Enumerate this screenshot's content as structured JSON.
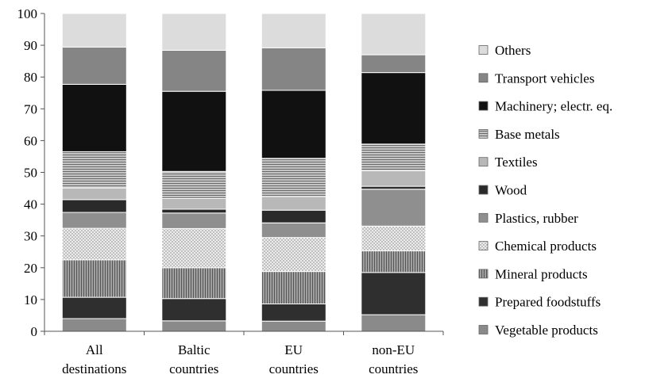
{
  "chart_data": {
    "type": "bar",
    "stacked": true,
    "ylim": [
      0,
      100
    ],
    "yticks": [
      "0",
      "10",
      "20",
      "30",
      "40",
      "50",
      "60",
      "70",
      "80",
      "90",
      "100"
    ],
    "grid": false,
    "legend_position": "right",
    "categories": [
      [
        "All",
        "destinations"
      ],
      [
        "Baltic",
        "countries"
      ],
      [
        "EU",
        "countries"
      ],
      [
        "non-EU",
        "countries"
      ]
    ],
    "series": [
      {
        "name": "Vegetable products",
        "color": "#8a8a8a",
        "pattern": "solid",
        "values": [
          4.0,
          3.3,
          3.2,
          5.2
        ]
      },
      {
        "name": "Prepared foodstuffs",
        "color": "#2f2f2f",
        "pattern": "solid",
        "values": [
          6.7,
          7.0,
          5.4,
          13.3
        ]
      },
      {
        "name": "Mineral products",
        "color": "#8c8c8c",
        "pattern": "vlines",
        "values": [
          11.8,
          9.7,
          10.2,
          6.8
        ]
      },
      {
        "name": "Chemical products",
        "color": "#e0e0e0",
        "pattern": "dots",
        "values": [
          9.9,
          12.3,
          10.7,
          7.8
        ]
      },
      {
        "name": "Plastics, rubber",
        "color": "#8f8f8f",
        "pattern": "solid",
        "values": [
          5.0,
          4.9,
          4.6,
          11.6
        ]
      },
      {
        "name": "Wood",
        "color": "#2a2a2a",
        "pattern": "solid",
        "values": [
          4.0,
          1.2,
          4.0,
          0.9
        ]
      },
      {
        "name": "Textiles",
        "color": "#b8b8b8",
        "pattern": "solid",
        "values": [
          3.7,
          3.4,
          4.3,
          4.9
        ]
      },
      {
        "name": "Base metals",
        "color": "#a8a8a8",
        "pattern": "hlines",
        "values": [
          11.4,
          8.5,
          12.0,
          8.4
        ]
      },
      {
        "name": "Machinery; electr. eq.",
        "color": "#111111",
        "pattern": "solid",
        "values": [
          21.2,
          25.2,
          21.4,
          22.5
        ]
      },
      {
        "name": "Transport vehicles",
        "color": "#858585",
        "pattern": "solid",
        "values": [
          11.7,
          12.9,
          13.4,
          5.6
        ]
      },
      {
        "name": "Others",
        "color": "#dcdcdc",
        "pattern": "solid",
        "values": [
          10.6,
          11.6,
          10.8,
          13.0
        ]
      }
    ]
  }
}
